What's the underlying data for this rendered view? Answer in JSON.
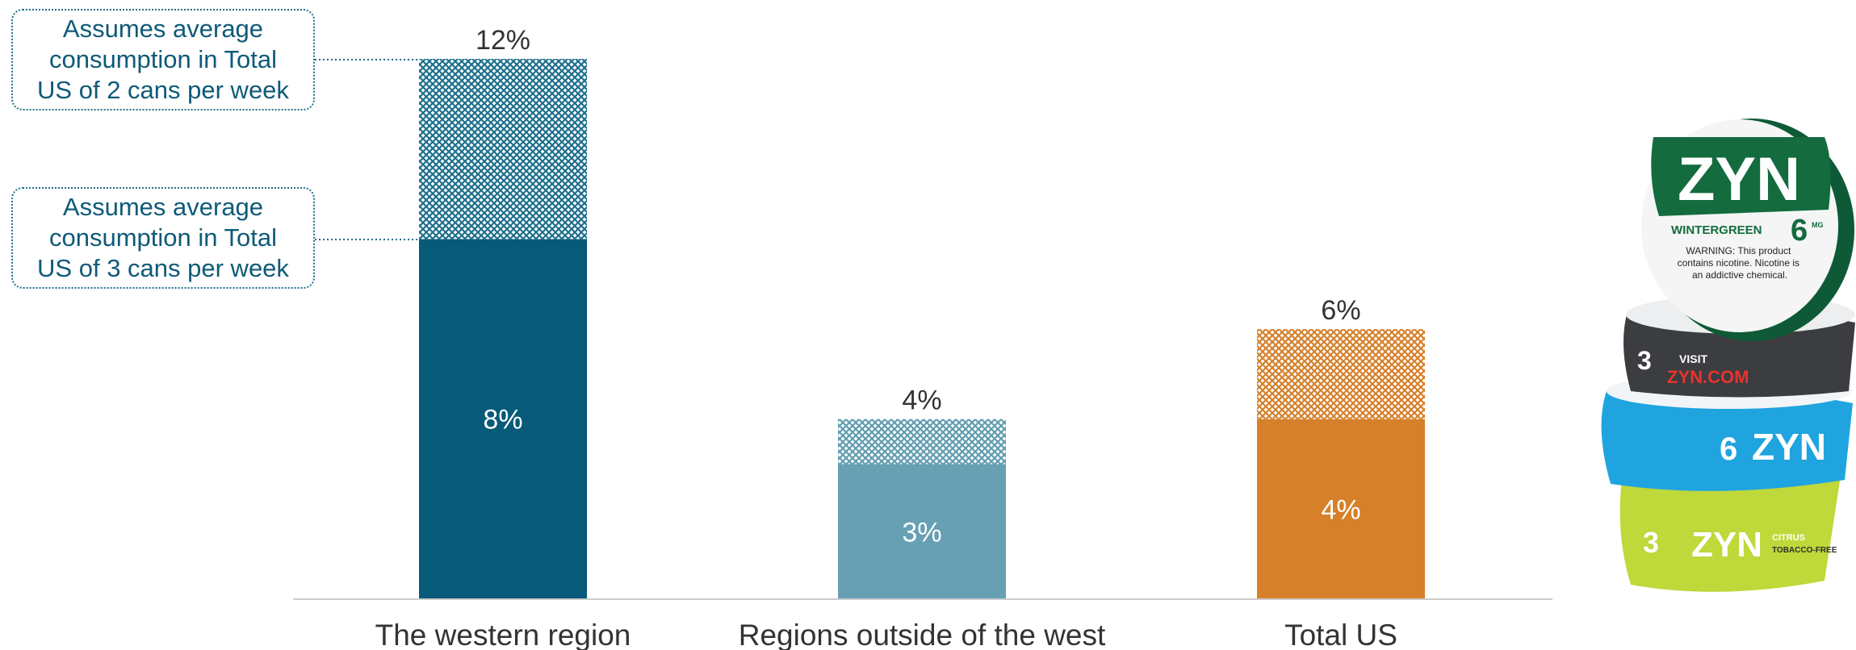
{
  "notes": {
    "upper": "Assumes average\nconsumption in Total\nUS of 2 cans per week",
    "lower": "Assumes average\nconsumption in Total\nUS of 3 cans per week"
  },
  "chart_data": {
    "type": "bar",
    "stacked": true,
    "title": "",
    "xlabel": "",
    "ylabel": "",
    "categories": [
      "The western region",
      "Regions outside of the west",
      "Total US"
    ],
    "series": [
      {
        "name": "",
        "values": [
          8,
          3,
          4
        ],
        "labels": [
          "8%",
          "3%",
          "4%"
        ]
      },
      {
        "name": "",
        "values": [
          4,
          1,
          2
        ]
      }
    ],
    "totals": [
      12,
      4,
      6
    ],
    "total_labels": [
      "12%",
      "4%",
      "6%"
    ],
    "ylim": [
      0,
      12
    ],
    "grid": false,
    "colors": {
      "solid": [
        "#075a78",
        "#67a0b3",
        "#d6802a"
      ],
      "hatched": [
        "#3f8aa1",
        "#7fb3c3",
        "#e09a52"
      ]
    }
  },
  "product_image": {
    "brand_top": "ZYN",
    "flavor_top": "WINTERGREEN",
    "strength_top": "6",
    "unit_top": "MG",
    "warning": "WARNING: This product\ncontains nicotine. Nicotine is\nan addictive chemical.",
    "can2_strength": "3",
    "can2_text_1": "VISIT",
    "can2_text_2": "ZYN.COM",
    "can3_strength": "6",
    "can3_brand": "ZYN",
    "can4_strength": "3",
    "can4_brand": "ZYN",
    "can4_flavor": "CITRUS",
    "can4_note": "TOBACCO-FREE"
  }
}
